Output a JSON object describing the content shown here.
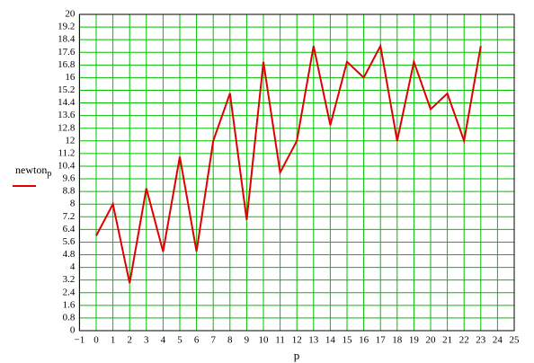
{
  "chart_data": {
    "type": "line",
    "x_label": "p",
    "x": [
      0,
      1,
      2,
      3,
      4,
      5,
      6,
      7,
      8,
      9,
      10,
      11,
      12,
      13,
      14,
      15,
      16,
      17,
      18,
      19,
      20,
      21,
      22,
      23
    ],
    "series": [
      {
        "name": "newton",
        "name_subscript": "p",
        "color": "#e00000",
        "values": [
          6,
          8,
          3,
          9,
          5,
          11,
          5,
          12,
          15,
          7,
          17,
          10,
          12,
          18,
          13,
          17,
          16,
          18,
          12,
          17,
          14,
          15,
          12,
          18
        ]
      }
    ],
    "xlim": [
      -1,
      25
    ],
    "xticks": [
      {
        "value": -1,
        "label": "−1"
      },
      0,
      1,
      2,
      3,
      4,
      5,
      6,
      7,
      8,
      9,
      10,
      11,
      12,
      13,
      14,
      15,
      16,
      17,
      18,
      19,
      20,
      21,
      22,
      23,
      24,
      25
    ],
    "ylim": [
      0,
      20
    ],
    "yticks": [
      0,
      0.8,
      1.6,
      2.4,
      3.2,
      4,
      4.8,
      5.6,
      6.4,
      7.2,
      8,
      8.8,
      9.6,
      10.4,
      11.2,
      12,
      12.8,
      13.6,
      14.4,
      15.2,
      16,
      16.8,
      17.6,
      18.4,
      19.2,
      20
    ],
    "grid": true,
    "grid_color": "#00c000",
    "legend": "left"
  }
}
